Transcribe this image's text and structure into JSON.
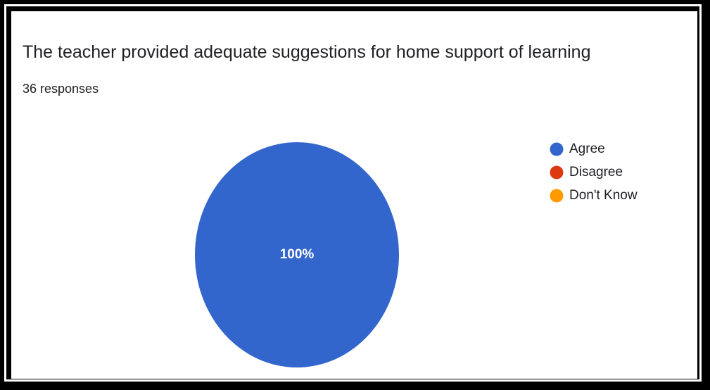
{
  "card": {
    "title": "The teacher provided adequate suggestions for home support of learning",
    "responses": "36 responses"
  },
  "colors": {
    "agree": "#3366cc",
    "disagree": "#dc3912",
    "dont_know": "#ff9900"
  },
  "chart_data": {
    "type": "pie",
    "title": "The teacher provided adequate suggestions for home support of learning",
    "subtitle": "36 responses",
    "categories": [
      "Agree",
      "Disagree",
      "Don't Know"
    ],
    "values": [
      100,
      0,
      0
    ],
    "unit": "%",
    "slice_labels": [
      "100%"
    ],
    "colors": [
      "#3366cc",
      "#dc3912",
      "#ff9900"
    ],
    "legend_position": "right"
  }
}
